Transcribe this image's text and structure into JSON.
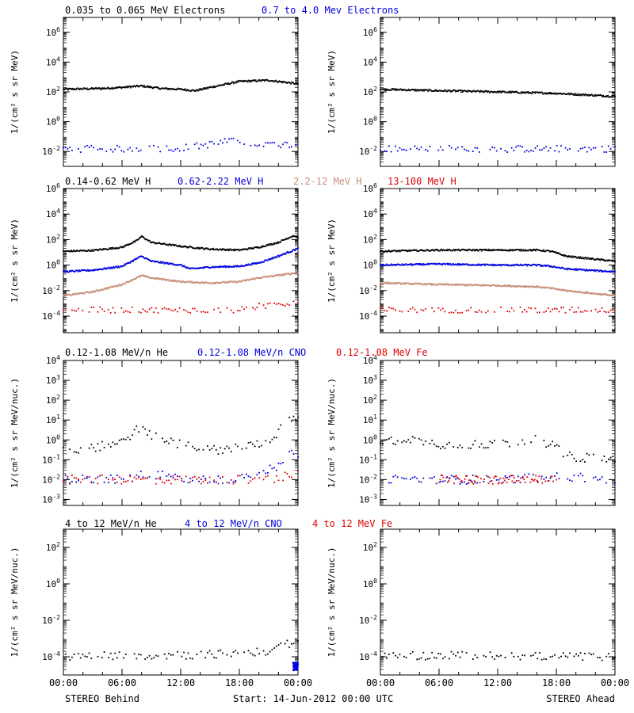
{
  "footer": {
    "left_label": "STEREO Behind",
    "center_label": "Start: 14-Jun-2012 00:00 UTC",
    "right_label": "STEREO Ahead"
  },
  "x_tick_labels": [
    "00:00",
    "06:00",
    "12:00",
    "18:00",
    "00:00"
  ],
  "colors": {
    "black": "#000000",
    "blue": "#0000e0",
    "tan": "#c88c78",
    "red": "#e00000"
  },
  "chart_data": [
    {
      "type": "scatter",
      "row": 1,
      "ylabel": "1/(cm² s sr MeV)",
      "ylog": true,
      "ylim": [
        0.001,
        10000000
      ],
      "y_ticks": [
        "10^6",
        "10^4",
        "10^2",
        "10^0",
        "10^-2"
      ],
      "legend": [
        {
          "label": "0.035 to 0.065 MeV Electrons",
          "color": "#000000"
        },
        {
          "label": "0.7 to 4.0 Mev Electrons",
          "color": "#0000e0"
        }
      ],
      "panels": [
        {
          "spacecraft": "STEREO Behind",
          "series": [
            {
              "name": "0.035 to 0.065 MeV Electrons",
              "color": "#000000",
              "style": "dense",
              "x": [
                0,
                2,
                4,
                6,
                8,
                10,
                12,
                13.5,
                15,
                18,
                21,
                24
              ],
              "y": [
                150,
                160,
                170,
                200,
                250,
                170,
                150,
                120,
                200,
                500,
                600,
                350
              ]
            },
            {
              "name": "0.7 to 4.0 Mev Electrons",
              "color": "#0000e0",
              "style": "sparse",
              "x": [
                0,
                6,
                12,
                15,
                17,
                20,
                24
              ],
              "y": [
                0.015,
                0.015,
                0.017,
                0.03,
                0.05,
                0.03,
                0.03
              ]
            }
          ]
        },
        {
          "spacecraft": "STEREO Ahead",
          "series": [
            {
              "name": "0.035 to 0.065 MeV Electrons",
              "color": "#000000",
              "style": "dense",
              "x": [
                0,
                6,
                12,
                18,
                24
              ],
              "y": [
                150,
                120,
                100,
                80,
                50
              ]
            },
            {
              "name": "0.7 to 4.0 Mev Electrons",
              "color": "#0000e0",
              "style": "sparse",
              "x": [
                0,
                6,
                12,
                18,
                24
              ],
              "y": [
                0.015,
                0.015,
                0.015,
                0.015,
                0.015
              ]
            }
          ]
        }
      ]
    },
    {
      "type": "scatter",
      "row": 2,
      "ylabel": "1/(cm² s sr MeV)",
      "ylog": true,
      "ylim": [
        5e-06,
        1000000
      ],
      "y_ticks": [
        "10^6",
        "10^4",
        "10^2",
        "10^0",
        "10^-2",
        "10^-4"
      ],
      "legend": [
        {
          "label": "0.14-0.62 MeV H",
          "color": "#000000"
        },
        {
          "label": "0.62-2.22 MeV H",
          "color": "#0000e0"
        },
        {
          "label": "2.2-12 MeV H",
          "color": "#c88c78"
        },
        {
          "label": "13-100 MeV H",
          "color": "#e00000"
        }
      ],
      "panels": [
        {
          "spacecraft": "STEREO Behind",
          "series": [
            {
              "name": "0.14-0.62 MeV H",
              "color": "#000000",
              "style": "dense",
              "x": [
                0,
                3,
                6,
                7.5,
                8,
                9,
                12,
                13,
                15,
                18,
                20,
                22,
                23.5,
                24
              ],
              "y": [
                12,
                14,
                25,
                80,
                180,
                60,
                30,
                25,
                18,
                15,
                25,
                60,
                200,
                150
              ]
            },
            {
              "name": "0.62-2.22 MeV H",
              "color": "#0000e0",
              "style": "dense",
              "x": [
                0,
                3,
                6,
                8,
                9,
                12,
                13,
                15,
                18,
                20,
                22,
                24
              ],
              "y": [
                0.3,
                0.4,
                0.8,
                5,
                2,
                1,
                0.5,
                0.7,
                0.8,
                1.5,
                5,
                20
              ]
            },
            {
              "name": "2.2-12 MeV H",
              "color": "#c88c78",
              "style": "dense",
              "x": [
                0,
                3,
                6,
                8,
                9,
                12,
                15,
                18,
                20,
                24
              ],
              "y": [
                0.004,
                0.008,
                0.03,
                0.15,
                0.1,
                0.05,
                0.04,
                0.05,
                0.1,
                0.25
              ]
            },
            {
              "name": "13-100 MeV H",
              "color": "#e00000",
              "style": "sparse",
              "x": [
                0,
                6,
                12,
                18,
                20,
                24
              ],
              "y": [
                0.0003,
                0.0003,
                0.0003,
                0.0003,
                0.0006,
                0.0012
              ]
            }
          ]
        },
        {
          "spacecraft": "STEREO Ahead",
          "series": [
            {
              "name": "0.14-0.62 MeV H",
              "color": "#000000",
              "style": "dense",
              "x": [
                0,
                6,
                12,
                16,
                17.5,
                19,
                24
              ],
              "y": [
                12,
                15,
                15,
                15,
                12,
                5,
                2
              ]
            },
            {
              "name": "0.62-2.22 MeV H",
              "color": "#0000e0",
              "style": "dense",
              "x": [
                0,
                6,
                12,
                16,
                17.5,
                19,
                24
              ],
              "y": [
                1,
                1.2,
                1,
                1,
                0.8,
                0.5,
                0.3
              ]
            },
            {
              "name": "2.2-12 MeV H",
              "color": "#c88c78",
              "style": "dense",
              "x": [
                0,
                6,
                12,
                16,
                17.5,
                19,
                24
              ],
              "y": [
                0.04,
                0.03,
                0.025,
                0.02,
                0.015,
                0.01,
                0.004
              ]
            },
            {
              "name": "13-100 MeV H",
              "color": "#e00000",
              "style": "sparse",
              "x": [
                0,
                12,
                24
              ],
              "y": [
                0.0003,
                0.0003,
                0.0003
              ]
            }
          ]
        }
      ]
    },
    {
      "type": "scatter",
      "row": 3,
      "ylabel": "1/(cm² s sr MeV/nuc.)",
      "ylog": true,
      "ylim": [
        0.0005,
        10000
      ],
      "y_ticks": [
        "10^4",
        "10^3",
        "10^2",
        "10^1",
        "10^0",
        "10^-1",
        "10^-2",
        "10^-3"
      ],
      "legend": [
        {
          "label": "0.12-1.08 MeV/n He",
          "color": "#000000"
        },
        {
          "label": "0.12-1.08 MeV/n CNO",
          "color": "#0000e0"
        },
        {
          "label": "0.12-1.08 MeV Fe",
          "color": "#e00000"
        }
      ],
      "panels": [
        {
          "spacecraft": "STEREO Behind",
          "series": [
            {
              "name": "0.12-1.08 MeV/n He",
              "color": "#000000",
              "style": "sparse",
              "x": [
                0,
                3,
                6,
                8,
                9,
                12,
                15,
                18,
                21,
                22.5,
                24
              ],
              "y": [
                0.3,
                0.4,
                0.8,
                5,
                1.5,
                0.6,
                0.3,
                0.4,
                0.8,
                5,
                20
              ]
            },
            {
              "name": "0.12-1.08 MeV/n CNO",
              "color": "#0000e0",
              "style": "sparse",
              "x": [
                0,
                7.5,
                8,
                9,
                12,
                18,
                22,
                23,
                24
              ],
              "y": [
                0.01,
                0.01,
                0.02,
                0.02,
                0.01,
                0.01,
                0.05,
                0.3,
                0.2
              ]
            },
            {
              "name": "0.12-1.08 MeV Fe",
              "color": "#e00000",
              "style": "sparse",
              "x": [
                0,
                12,
                18,
                22,
                24
              ],
              "y": [
                0.01,
                0.01,
                0.01,
                0.01,
                0.03
              ]
            }
          ]
        },
        {
          "spacecraft": "STEREO Ahead",
          "series": [
            {
              "name": "0.12-1.08 MeV/n He",
              "color": "#000000",
              "style": "sparse",
              "x": [
                0,
                3,
                6,
                12,
                16,
                17.5,
                19,
                24
              ],
              "y": [
                0.8,
                1.2,
                0.6,
                0.6,
                1,
                0.6,
                0.15,
                0.1
              ]
            },
            {
              "name": "0.12-1.08 MeV/n CNO",
              "color": "#0000e0",
              "style": "sparse",
              "x": [
                0,
                12,
                18,
                24
              ],
              "y": [
                0.01,
                0.01,
                0.015,
                0.01
              ]
            },
            {
              "name": "0.12-1.08 MeV Fe",
              "color": "#e00000",
              "style": "sparse",
              "x": [
                6,
                12,
                18
              ],
              "y": [
                0.01,
                0.01,
                0.01
              ]
            }
          ]
        }
      ]
    },
    {
      "type": "scatter",
      "row": 4,
      "ylabel": "1/(cm² s sr MeV/nuc.)",
      "ylog": true,
      "ylim": [
        1e-05,
        1000
      ],
      "y_ticks": [
        "10^2",
        "10^0",
        "10^-2",
        "10^-4"
      ],
      "legend": [
        {
          "label": "4 to 12 MeV/n He",
          "color": "#000000"
        },
        {
          "label": "4 to 12 MeV/n CNO",
          "color": "#0000e0"
        },
        {
          "label": "4 to 12 MeV Fe",
          "color": "#e00000"
        }
      ],
      "panels": [
        {
          "spacecraft": "STEREO Behind",
          "series": [
            {
              "name": "4 to 12 MeV/n He",
              "color": "#000000",
              "style": "sparse",
              "x": [
                0,
                6,
                12,
                18,
                21,
                23,
                24
              ],
              "y": [
                0.0001,
                0.00012,
                0.00012,
                0.00015,
                0.0002,
                0.0005,
                0.0008
              ]
            },
            {
              "name": "4 to 12 MeV/n CNO",
              "color": "#0000e0",
              "style": "sparse",
              "x": [
                23.5,
                24
              ],
              "y": [
                3e-05,
                3e-05
              ]
            }
          ]
        },
        {
          "spacecraft": "STEREO Ahead",
          "series": [
            {
              "name": "4 to 12 MeV/n He",
              "color": "#000000",
              "style": "sparse",
              "x": [
                0,
                6,
                12,
                18,
                24
              ],
              "y": [
                0.0001,
                0.00012,
                0.00011,
                0.0001,
                0.0001
              ]
            }
          ]
        }
      ]
    }
  ]
}
